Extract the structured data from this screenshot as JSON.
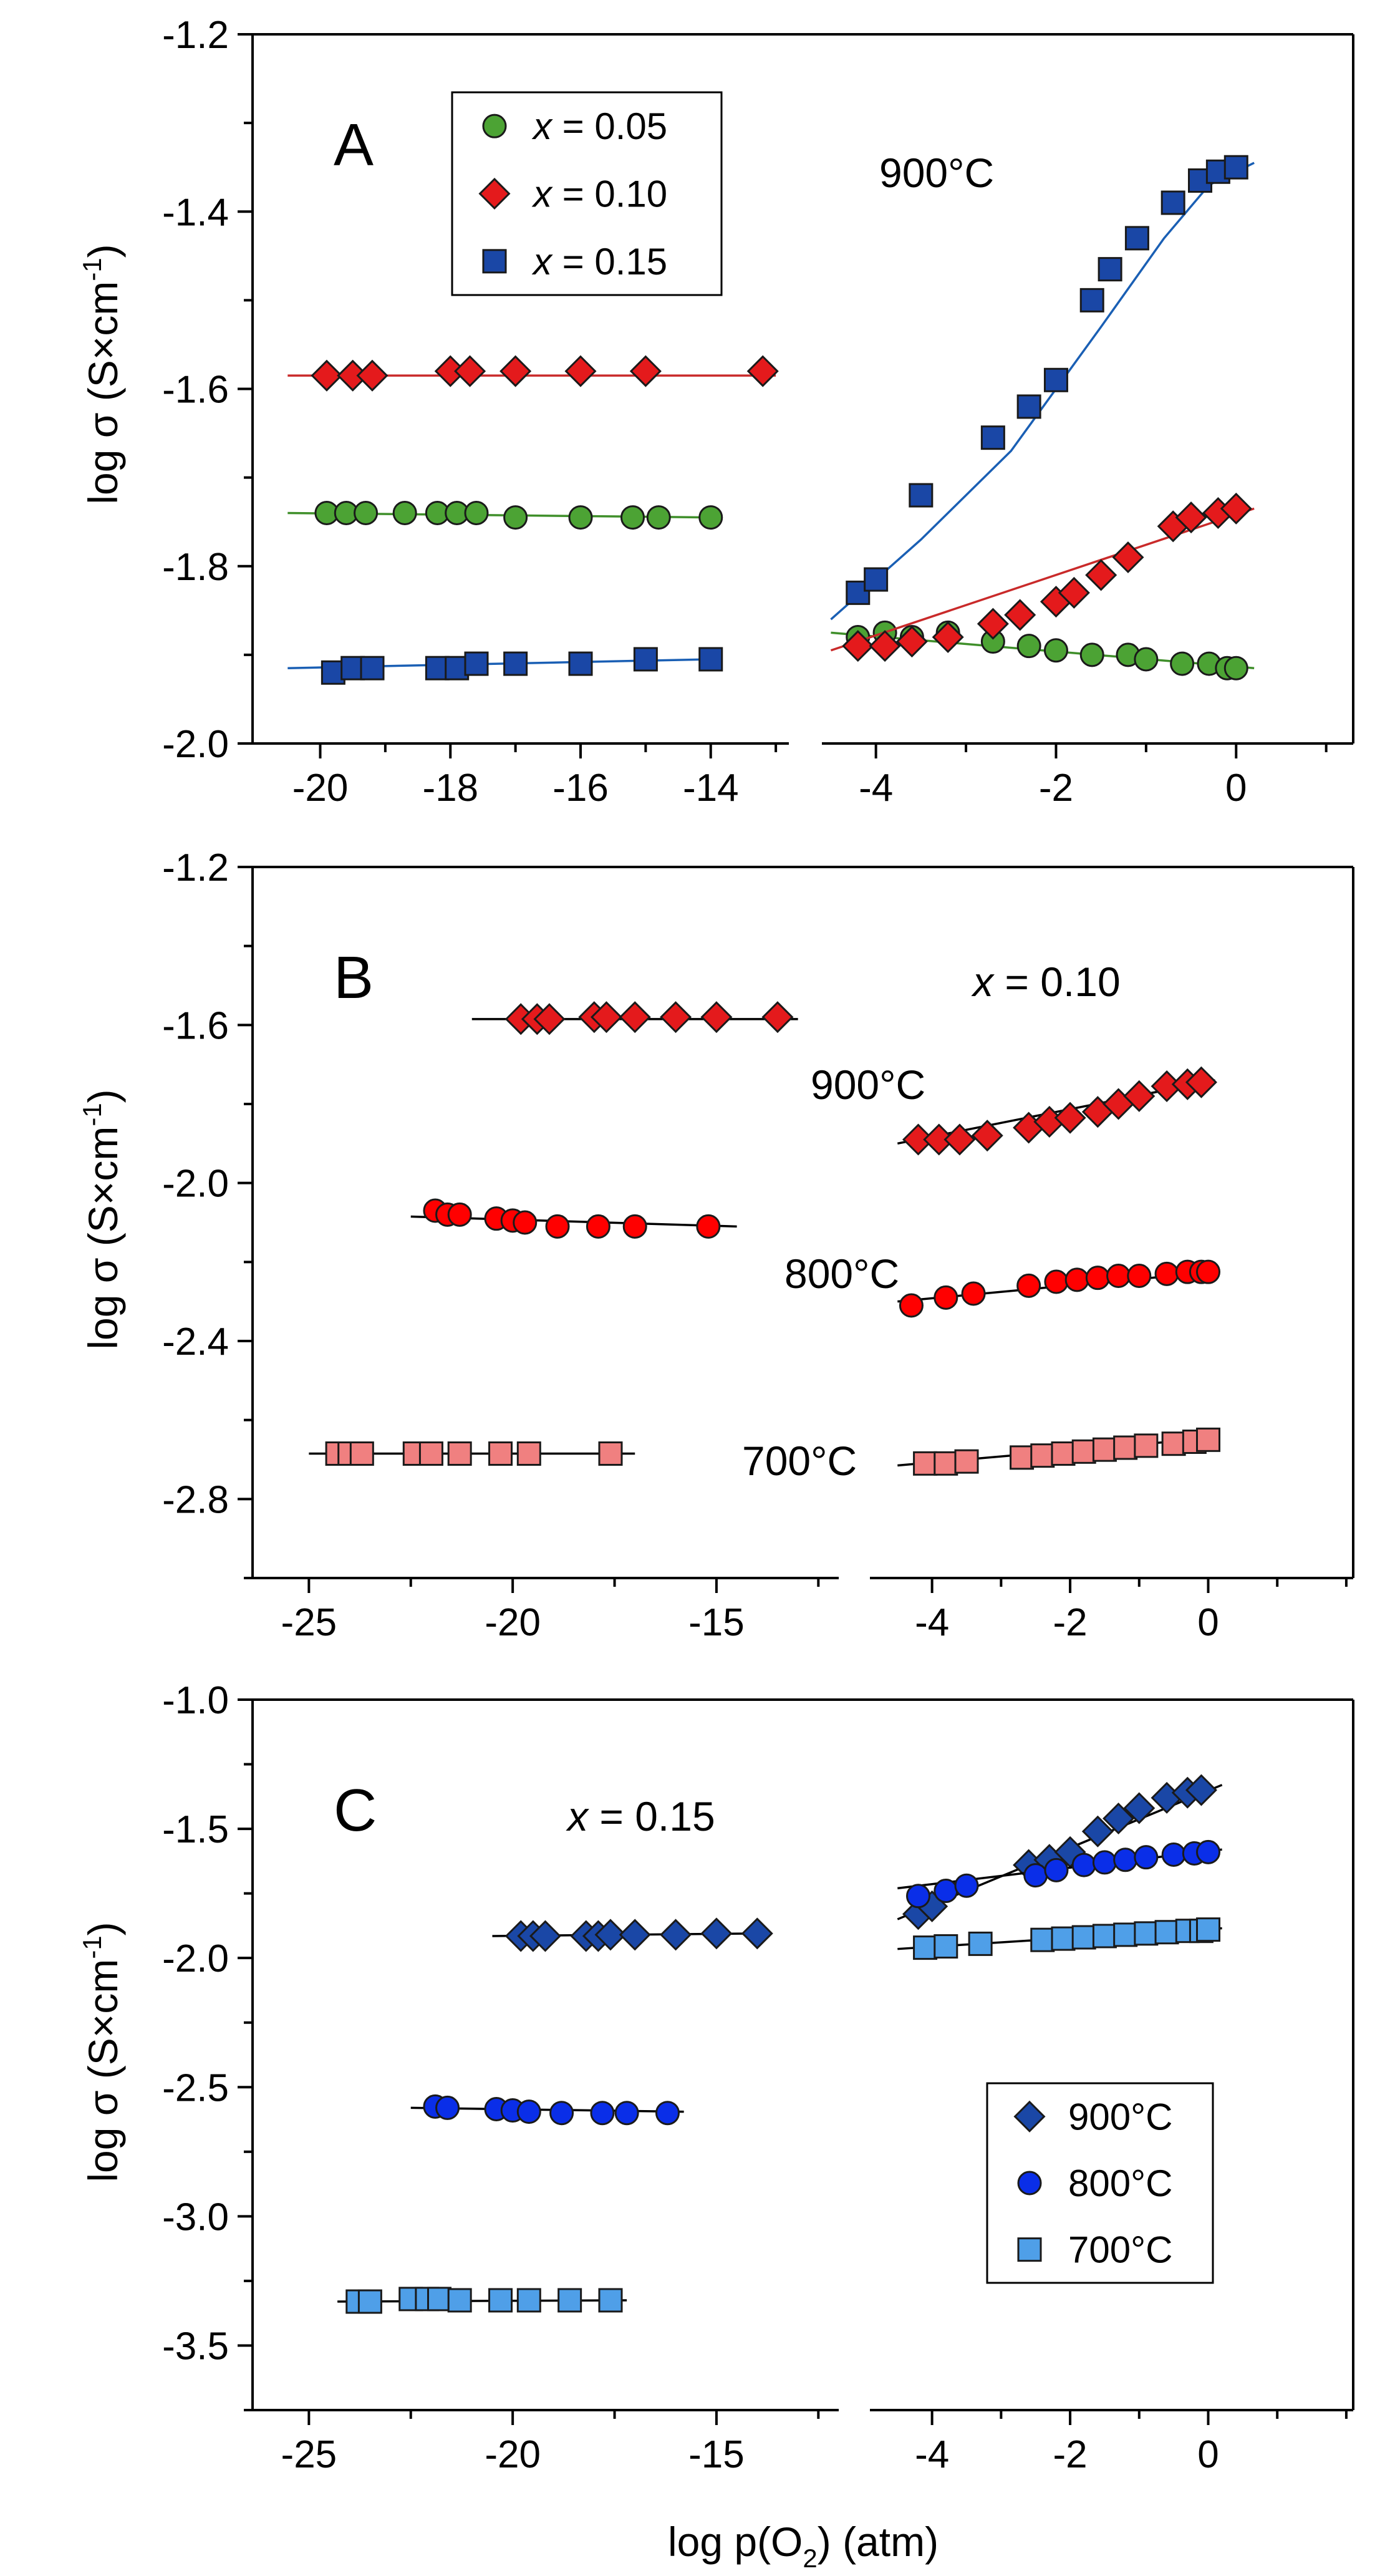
{
  "chart_data": [
    {
      "panel": "A",
      "type": "scatter",
      "title": "",
      "annotation": "900°C",
      "ylabel": "log σ (S×cm-1)",
      "ylim": [
        -2.0,
        -1.2
      ],
      "yticks": [
        "-1.2",
        "-1.4",
        "-1.6",
        "-1.8",
        "-2.0"
      ],
      "left_xlim": [
        -20.8,
        -12.8
      ],
      "left_xticks": [
        "-20",
        "-18",
        "-16",
        "-14"
      ],
      "right_xlim": [
        -4.6,
        1.3
      ],
      "right_xticks": [
        "-4",
        "-2",
        "0"
      ],
      "legend": [
        {
          "label": "x = 0.05",
          "var": "x",
          "rest": " = 0.05",
          "marker": "circle",
          "color": "#4ca334"
        },
        {
          "label": "x = 0.10",
          "var": "x",
          "rest": " = 0.10",
          "marker": "diamond",
          "color": "#e41a1c"
        },
        {
          "label": "x = 0.15",
          "var": "x",
          "rest": " = 0.15",
          "marker": "square",
          "color": "#1a47a6"
        }
      ],
      "series": [
        {
          "name": "x = 0.05",
          "marker": "circle",
          "color": "#4ca334",
          "line": "#3f8f2a",
          "left": {
            "x": [
              -19.9,
              -19.6,
              -19.3,
              -18.7,
              -18.2,
              -17.9,
              -17.6,
              -17.0,
              -16.0,
              -15.2,
              -14.8,
              -14.0
            ],
            "y": [
              -1.74,
              -1.74,
              -1.74,
              -1.74,
              -1.74,
              -1.74,
              -1.74,
              -1.745,
              -1.745,
              -1.745,
              -1.745,
              -1.745
            ]
          },
          "right": {
            "x": [
              -4.2,
              -3.9,
              -3.6,
              -3.2,
              -2.7,
              -2.3,
              -2.0,
              -1.6,
              -1.2,
              -1.0,
              -0.6,
              -0.3,
              -0.1,
              0.0
            ],
            "y": [
              -1.88,
              -1.875,
              -1.88,
              -1.875,
              -1.885,
              -1.89,
              -1.895,
              -1.9,
              -1.9,
              -1.905,
              -1.91,
              -1.91,
              -1.915,
              -1.915
            ]
          },
          "left_fit": {
            "x": [
              -20.5,
              -14.0
            ],
            "y": [
              -1.74,
              -1.745
            ]
          },
          "right_fit": {
            "x": [
              -4.5,
              0.2
            ],
            "y": [
              -1.875,
              -1.915
            ]
          }
        },
        {
          "name": "x = 0.10",
          "marker": "diamond",
          "color": "#e41a1c",
          "line": "#c92a2a",
          "left": {
            "x": [
              -19.9,
              -19.5,
              -19.2,
              -18.0,
              -17.7,
              -17.0,
              -16.0,
              -15.0,
              -13.2
            ],
            "y": [
              -1.585,
              -1.585,
              -1.585,
              -1.58,
              -1.58,
              -1.58,
              -1.58,
              -1.58,
              -1.58
            ]
          },
          "right": {
            "x": [
              -4.2,
              -3.9,
              -3.6,
              -3.2,
              -2.7,
              -2.4,
              -2.0,
              -1.8,
              -1.5,
              -1.2,
              -0.7,
              -0.5,
              -0.2,
              0.0
            ],
            "y": [
              -1.89,
              -1.89,
              -1.885,
              -1.88,
              -1.865,
              -1.855,
              -1.84,
              -1.83,
              -1.81,
              -1.79,
              -1.755,
              -1.745,
              -1.74,
              -1.735
            ]
          },
          "left_fit": {
            "x": [
              -20.5,
              -13.0
            ],
            "y": [
              -1.585,
              -1.585
            ]
          },
          "right_fit": {
            "x": [
              -4.5,
              0.2
            ],
            "y": [
              -1.895,
              -1.735
            ]
          }
        },
        {
          "name": "x = 0.15",
          "marker": "square",
          "color": "#1a47a6",
          "line": "#1a5fb4",
          "left": {
            "x": [
              -19.8,
              -19.5,
              -19.2,
              -18.2,
              -17.9,
              -17.6,
              -17.0,
              -16.0,
              -15.0,
              -14.0
            ],
            "y": [
              -1.92,
              -1.915,
              -1.915,
              -1.915,
              -1.915,
              -1.91,
              -1.91,
              -1.91,
              -1.905,
              -1.905
            ]
          },
          "right": {
            "x": [
              -4.2,
              -4.0,
              -3.5,
              -2.7,
              -2.3,
              -2.0,
              -1.6,
              -1.4,
              -1.1,
              -0.7,
              -0.4,
              -0.2,
              0.0
            ],
            "y": [
              -1.83,
              -1.815,
              -1.72,
              -1.655,
              -1.62,
              -1.59,
              -1.5,
              -1.465,
              -1.43,
              -1.39,
              -1.365,
              -1.355,
              -1.35
            ]
          },
          "left_fit": {
            "x": [
              -20.5,
              -14.0
            ],
            "y": [
              -1.915,
              -1.905
            ]
          },
          "right_fit": {
            "x": [
              -4.5,
              -3.5,
              -2.5,
              -1.5,
              -0.8,
              -0.3,
              0.2
            ],
            "y": [
              -1.86,
              -1.77,
              -1.67,
              -1.53,
              -1.43,
              -1.37,
              -1.345
            ]
          }
        }
      ]
    },
    {
      "panel": "B",
      "type": "scatter",
      "annotation_var": "x",
      "annotation_rest": " = 0.10",
      "ylabel": "log σ (S×cm-1)",
      "ylim": [
        -3.0,
        -1.2
      ],
      "yticks": [
        "-1.2",
        "-1.6",
        "-2.0",
        "-2.4",
        "-2.8"
      ],
      "left_xlim": [
        -26.0,
        -12.0
      ],
      "left_xticks": [
        "-25",
        "-20",
        "-15"
      ],
      "right_xlim": [
        -4.9,
        2.1
      ],
      "right_xticks": [
        "-4",
        "-2",
        "0"
      ],
      "series": [
        {
          "name": "900°C",
          "label": "900°C",
          "marker": "diamond",
          "color": "#e41a1c",
          "line": "#000000",
          "left": {
            "x": [
              -19.8,
              -19.4,
              -19.1,
              -18.0,
              -17.7,
              -17.0,
              -16.0,
              -15.0,
              -13.5
            ],
            "y": [
              -1.585,
              -1.585,
              -1.585,
              -1.58,
              -1.58,
              -1.58,
              -1.58,
              -1.58,
              -1.58
            ]
          },
          "right": {
            "x": [
              -4.2,
              -3.9,
              -3.6,
              -3.2,
              -2.6,
              -2.3,
              -2.0,
              -1.6,
              -1.3,
              -1.0,
              -0.6,
              -0.3,
              -0.1
            ],
            "y": [
              -1.89,
              -1.89,
              -1.89,
              -1.88,
              -1.86,
              -1.845,
              -1.835,
              -1.82,
              -1.8,
              -1.78,
              -1.755,
              -1.75,
              -1.745
            ]
          },
          "left_fit": {
            "x": [
              -21.0,
              -13.0
            ],
            "y": [
              -1.585,
              -1.585
            ]
          },
          "right_fit": {
            "x": [
              -4.5,
              0.1
            ],
            "y": [
              -1.9,
              -1.74
            ]
          }
        },
        {
          "name": "800°C",
          "label": "800°C",
          "marker": "circle",
          "color": "#ff0000",
          "line": "#000000",
          "left": {
            "x": [
              -21.9,
              -21.6,
              -21.3,
              -20.4,
              -20.0,
              -19.7,
              -18.9,
              -17.9,
              -17.0,
              -15.2
            ],
            "y": [
              -2.07,
              -2.08,
              -2.08,
              -2.09,
              -2.095,
              -2.1,
              -2.11,
              -2.11,
              -2.11,
              -2.11
            ]
          },
          "right": {
            "x": [
              -4.3,
              -3.8,
              -3.4,
              -2.6,
              -2.2,
              -1.9,
              -1.6,
              -1.3,
              -1.0,
              -0.6,
              -0.3,
              -0.1,
              0.0
            ],
            "y": [
              -2.31,
              -2.29,
              -2.28,
              -2.26,
              -2.25,
              -2.245,
              -2.24,
              -2.235,
              -2.235,
              -2.23,
              -2.225,
              -2.225,
              -2.225
            ]
          },
          "left_fit": {
            "x": [
              -22.5,
              -14.5
            ],
            "y": [
              -2.085,
              -2.11
            ]
          },
          "right_fit": {
            "x": [
              -4.5,
              0.1
            ],
            "y": [
              -2.3,
              -2.225
            ]
          }
        },
        {
          "name": "700°C",
          "label": "700°C",
          "marker": "square",
          "color": "#f08080",
          "line": "#000000",
          "left": {
            "x": [
              -24.3,
              -24.0,
              -23.7,
              -22.4,
              -22.0,
              -21.3,
              -20.3,
              -19.6,
              -17.6
            ],
            "y": [
              -2.685,
              -2.685,
              -2.685,
              -2.685,
              -2.685,
              -2.685,
              -2.685,
              -2.685,
              -2.685
            ]
          },
          "right": {
            "x": [
              -4.1,
              -3.8,
              -3.5,
              -2.7,
              -2.4,
              -2.1,
              -1.8,
              -1.5,
              -1.2,
              -0.9,
              -0.5,
              -0.2,
              0.0
            ],
            "y": [
              -2.71,
              -2.71,
              -2.705,
              -2.695,
              -2.69,
              -2.685,
              -2.68,
              -2.675,
              -2.67,
              -2.665,
              -2.66,
              -2.655,
              -2.65
            ]
          },
          "left_fit": {
            "x": [
              -25.0,
              -17.0
            ],
            "y": [
              -2.685,
              -2.685
            ]
          },
          "right_fit": {
            "x": [
              -4.5,
              0.1
            ],
            "y": [
              -2.715,
              -2.645
            ]
          }
        }
      ]
    },
    {
      "panel": "C",
      "type": "scatter",
      "annotation_var": "x",
      "annotation_rest": " = 0.15",
      "xlabel_pre": "log p(O",
      "xlabel_sub": "2",
      "xlabel_post": ") (atm)",
      "ylabel": "log σ (S×cm-1)",
      "ylim": [
        -3.75,
        -1.0
      ],
      "yticks": [
        "-1.0",
        "-1.5",
        "-2.0",
        "-2.5",
        "-3.0",
        "-3.5"
      ],
      "left_xlim": [
        -26.0,
        -12.0
      ],
      "left_xticks": [
        "-25",
        "-20",
        "-15"
      ],
      "right_xlim": [
        -4.9,
        2.1
      ],
      "right_xticks": [
        "-4",
        "-2",
        "0"
      ],
      "legend": [
        {
          "label": "900°C",
          "marker": "diamond",
          "color": "#1a47a6"
        },
        {
          "label": "800°C",
          "marker": "circle",
          "color": "#0a2ee8"
        },
        {
          "label": "700°C",
          "marker": "square",
          "color": "#4f9fe8"
        }
      ],
      "series": [
        {
          "name": "900°C",
          "marker": "diamond",
          "color": "#1a47a6",
          "line": "#000000",
          "left": {
            "x": [
              -19.8,
              -19.5,
              -19.2,
              -18.2,
              -17.9,
              -17.6,
              -17.0,
              -16.0,
              -15.0,
              -14.0
            ],
            "y": [
              -1.915,
              -1.915,
              -1.915,
              -1.915,
              -1.915,
              -1.91,
              -1.91,
              -1.91,
              -1.905,
              -1.905
            ]
          },
          "right": {
            "x": [
              -4.2,
              -4.0,
              -2.6,
              -2.3,
              -2.0,
              -1.6,
              -1.3,
              -1.0,
              -0.6,
              -0.3,
              -0.1
            ],
            "y": [
              -1.83,
              -1.8,
              -1.64,
              -1.62,
              -1.59,
              -1.51,
              -1.46,
              -1.42,
              -1.38,
              -1.36,
              -1.35
            ]
          },
          "left_fit": {
            "x": [
              -20.5,
              -14.0
            ],
            "y": [
              -1.915,
              -1.905
            ]
          },
          "right_fit": {
            "x": [
              -4.5,
              0.2
            ],
            "y": [
              -1.85,
              -1.33
            ]
          }
        },
        {
          "name": "800°C",
          "marker": "circle",
          "color": "#0a2ee8",
          "line": "#000000",
          "left": {
            "x": [
              -21.9,
              -21.6,
              -20.4,
              -20.0,
              -19.6,
              -18.8,
              -17.8,
              -17.2,
              -16.2
            ],
            "y": [
              -2.575,
              -2.58,
              -2.585,
              -2.59,
              -2.595,
              -2.6,
              -2.6,
              -2.6,
              -2.6
            ]
          },
          "right": {
            "x": [
              -4.2,
              -3.8,
              -3.5,
              -2.5,
              -2.2,
              -1.8,
              -1.5,
              -1.2,
              -0.9,
              -0.5,
              -0.2,
              0.0
            ],
            "y": [
              -1.76,
              -1.74,
              -1.72,
              -1.68,
              -1.66,
              -1.64,
              -1.63,
              -1.62,
              -1.61,
              -1.6,
              -1.595,
              -1.59
            ]
          },
          "left_fit": {
            "x": [
              -22.5,
              -15.8
            ],
            "y": [
              -2.58,
              -2.595
            ]
          },
          "right_fit": {
            "x": [
              -4.5,
              0.2
            ],
            "y": [
              -1.73,
              -1.58
            ]
          }
        },
        {
          "name": "700°C",
          "marker": "square",
          "color": "#4f9fe8",
          "line": "#000000",
          "left": {
            "x": [
              -23.8,
              -23.5,
              -22.5,
              -22.1,
              -21.8,
              -21.3,
              -20.3,
              -19.6,
              -18.6,
              -17.6
            ],
            "y": [
              -3.33,
              -3.33,
              -3.32,
              -3.32,
              -3.32,
              -3.325,
              -3.325,
              -3.325,
              -3.325,
              -3.325
            ]
          },
          "right": {
            "x": [
              -4.1,
              -3.8,
              -3.3,
              -2.4,
              -2.1,
              -1.8,
              -1.5,
              -1.2,
              -0.9,
              -0.6,
              -0.3,
              -0.1,
              0.0
            ],
            "y": [
              -1.96,
              -1.955,
              -1.945,
              -1.93,
              -1.925,
              -1.92,
              -1.915,
              -1.91,
              -1.905,
              -1.9,
              -1.895,
              -1.895,
              -1.89
            ]
          },
          "left_fit": {
            "x": [
              -24.3,
              -17.2
            ],
            "y": [
              -3.33,
              -3.325
            ]
          },
          "right_fit": {
            "x": [
              -4.5,
              0.2
            ],
            "y": [
              -1.965,
              -1.885
            ]
          }
        }
      ]
    }
  ]
}
